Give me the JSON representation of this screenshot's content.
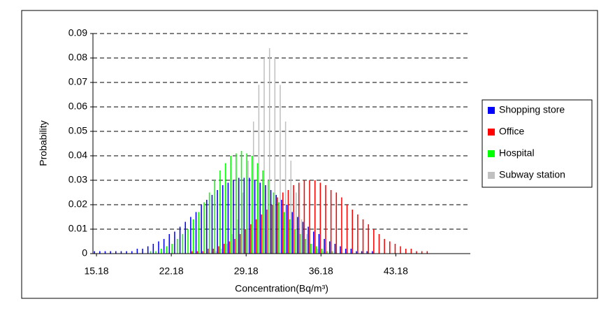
{
  "chart_data": {
    "type": "bar",
    "x_label": "Concentration(Bq/m³)",
    "y_label": "Probability",
    "x": [
      15.18,
      15.68,
      16.18,
      16.68,
      17.18,
      17.68,
      18.18,
      18.68,
      19.18,
      19.68,
      20.18,
      20.68,
      21.18,
      21.68,
      22.18,
      22.68,
      23.18,
      23.68,
      24.18,
      24.68,
      25.18,
      25.68,
      26.18,
      26.68,
      27.18,
      27.68,
      28.18,
      28.68,
      29.18,
      29.68,
      30.18,
      30.68,
      31.18,
      31.68,
      32.18,
      32.68,
      33.18,
      33.68,
      34.18,
      34.68,
      35.18,
      35.68,
      36.18,
      36.68,
      37.18,
      37.68,
      38.18,
      38.68,
      39.18,
      39.68,
      40.18,
      40.68,
      41.18,
      41.68,
      42.18,
      42.68,
      43.18,
      43.68,
      44.18,
      44.68,
      45.18,
      45.68,
      46.18,
      46.68,
      47.18,
      47.68,
      48.18,
      48.68,
      49.18
    ],
    "series": [
      {
        "name": "Shopping store",
        "color": "#0000ff",
        "values": [
          0.001,
          0.001,
          0.001,
          0.001,
          0.001,
          0.001,
          0.001,
          0.001,
          0.002,
          0.002,
          0.003,
          0.004,
          0.005,
          0.006,
          0.008,
          0.009,
          0.011,
          0.013,
          0.015,
          0.017,
          0.02,
          0.022,
          0.024,
          0.026,
          0.028,
          0.029,
          0.03,
          0.031,
          0.031,
          0.031,
          0.03,
          0.029,
          0.028,
          0.026,
          0.024,
          0.022,
          0.02,
          0.017,
          0.015,
          0.013,
          0.011,
          0.009,
          0.008,
          0.006,
          0.005,
          0.004,
          0.003,
          0.002,
          0.002,
          0.001,
          0.001,
          0.001,
          0.001,
          0,
          0,
          0,
          0,
          0,
          0,
          0,
          0,
          0,
          0,
          0,
          0,
          0,
          0,
          0,
          0
        ]
      },
      {
        "name": "Office",
        "color": "#ff0000",
        "values": [
          0,
          0,
          0,
          0,
          0,
          0,
          0,
          0,
          0,
          0,
          0,
          0,
          0,
          0,
          0,
          0,
          0,
          0,
          0.001,
          0.001,
          0.001,
          0.002,
          0.002,
          0.003,
          0.004,
          0.005,
          0.006,
          0.008,
          0.01,
          0.012,
          0.014,
          0.016,
          0.018,
          0.02,
          0.023,
          0.025,
          0.026,
          0.028,
          0.029,
          0.03,
          0.03,
          0.03,
          0.029,
          0.028,
          0.026,
          0.025,
          0.023,
          0.02,
          0.018,
          0.016,
          0.014,
          0.012,
          0.01,
          0.008,
          0.006,
          0.005,
          0.004,
          0.003,
          0.002,
          0.002,
          0.001,
          0.001,
          0.001,
          0,
          0,
          0,
          0,
          0,
          0
        ]
      },
      {
        "name": "Hospital",
        "color": "#00ff00",
        "values": [
          0,
          0,
          0,
          0,
          0,
          0,
          0,
          0,
          0,
          0,
          0.001,
          0.001,
          0.002,
          0.003,
          0.004,
          0.006,
          0.008,
          0.01,
          0.014,
          0.017,
          0.021,
          0.025,
          0.03,
          0.034,
          0.037,
          0.04,
          0.041,
          0.042,
          0.041,
          0.04,
          0.037,
          0.034,
          0.03,
          0.025,
          0.021,
          0.017,
          0.014,
          0.01,
          0.008,
          0.006,
          0.004,
          0.003,
          0.002,
          0.001,
          0.001,
          0,
          0,
          0,
          0,
          0,
          0,
          0,
          0,
          0,
          0,
          0,
          0,
          0,
          0,
          0,
          0,
          0,
          0,
          0,
          0,
          0,
          0,
          0,
          0
        ]
      },
      {
        "name": "Subway station",
        "color": "#c0c0c0",
        "values": [
          0,
          0,
          0,
          0,
          0,
          0,
          0,
          0,
          0,
          0,
          0,
          0,
          0,
          0,
          0,
          0,
          0,
          0,
          0,
          0,
          0,
          0,
          0.001,
          0.002,
          0.004,
          0.008,
          0.014,
          0.025,
          0.038,
          0.054,
          0.069,
          0.08,
          0.084,
          0.08,
          0.069,
          0.054,
          0.038,
          0.025,
          0.014,
          0.008,
          0.004,
          0.002,
          0.001,
          0,
          0,
          0,
          0,
          0,
          0,
          0,
          0,
          0,
          0,
          0,
          0,
          0,
          0,
          0,
          0,
          0,
          0,
          0,
          0,
          0,
          0,
          0,
          0,
          0,
          0
        ]
      }
    ],
    "xlim": [
      14.85,
      50.15
    ],
    "xticks": [
      15.18,
      22.18,
      29.18,
      36.18,
      43.18
    ],
    "ylim": [
      0,
      0.09
    ],
    "yticks": [
      0,
      0.01,
      0.02,
      0.03,
      0.04,
      0.05,
      0.06,
      0.07,
      0.08,
      0.09
    ],
    "grid": true,
    "legend": "right"
  }
}
